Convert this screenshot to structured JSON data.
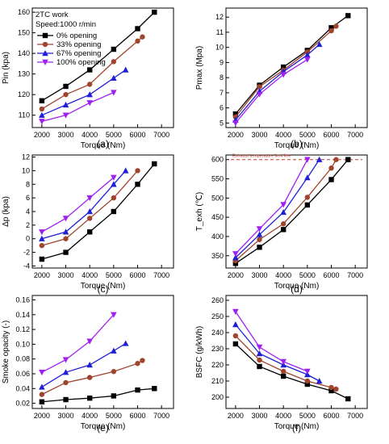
{
  "figure": {
    "legend": {
      "note_line1": "2TC work",
      "note_line2": "Speed:1000 r/min"
    }
  },
  "chart_data": [
    {
      "id": "a",
      "type": "line",
      "caption": "(a)",
      "title": "",
      "xlabel": "Torque (Nm)",
      "ylabel": "Pin (kpa)",
      "xlim": [
        1600,
        7500
      ],
      "xticks": [
        2000,
        3000,
        4000,
        5000,
        6000,
        7000
      ],
      "ylim": [
        104,
        162
      ],
      "yticks": [
        110,
        120,
        130,
        140,
        150,
        160
      ],
      "grid": false,
      "legend": "top-left",
      "series": [
        {
          "name": "0% opening",
          "color": "#000000",
          "marker": "square",
          "x": [
            2000,
            3000,
            4000,
            5000,
            6000,
            6700
          ],
          "y": [
            117,
            124,
            132,
            142,
            152,
            160
          ]
        },
        {
          "name": "33% opening",
          "color": "#a0442c",
          "marker": "circle",
          "x": [
            2000,
            3000,
            4000,
            5000,
            6000,
            6200
          ],
          "y": [
            113,
            120,
            125,
            136,
            146,
            148
          ]
        },
        {
          "name": "67% opening",
          "color": "#1f1fd6",
          "marker": "triangle",
          "x": [
            2000,
            3000,
            4000,
            5000,
            5500
          ],
          "y": [
            110,
            115,
            120,
            128,
            132
          ]
        },
        {
          "name": "100% opening",
          "color": "#a020f0",
          "marker": "tri-down",
          "x": [
            2000,
            3000,
            4000,
            5000
          ],
          "y": [
            107,
            110,
            116,
            121
          ]
        }
      ]
    },
    {
      "id": "b",
      "type": "line",
      "caption": "(b)",
      "title": "",
      "xlabel": "Torque (Nm)",
      "ylabel": "Pmax (Mpa)",
      "xlim": [
        1600,
        7500
      ],
      "xticks": [
        2000,
        3000,
        4000,
        5000,
        6000,
        7000
      ],
      "ylim": [
        4.7,
        12.6
      ],
      "yticks": [
        5,
        6,
        7,
        8,
        9,
        10,
        11,
        12
      ],
      "grid": false,
      "legend": "none",
      "series": [
        {
          "name": "0% opening",
          "color": "#000000",
          "marker": "square",
          "x": [
            2000,
            3000,
            4000,
            5000,
            6000,
            6700
          ],
          "y": [
            5.6,
            7.5,
            8.7,
            9.8,
            11.3,
            12.1
          ]
        },
        {
          "name": "33% opening",
          "color": "#a0442c",
          "marker": "circle",
          "x": [
            2000,
            3000,
            4000,
            5000,
            6000,
            6200
          ],
          "y": [
            5.4,
            7.4,
            8.5,
            9.7,
            11.1,
            11.4
          ]
        },
        {
          "name": "67% opening",
          "color": "#1f1fd6",
          "marker": "triangle",
          "x": [
            2000,
            3000,
            4000,
            5000,
            5500
          ],
          "y": [
            5.2,
            7.1,
            8.4,
            9.5,
            10.2
          ]
        },
        {
          "name": "100% opening",
          "color": "#a020f0",
          "marker": "tri-down",
          "x": [
            2000,
            3000,
            4000,
            5000
          ],
          "y": [
            5.0,
            6.9,
            8.2,
            9.2
          ]
        }
      ]
    },
    {
      "id": "c",
      "type": "line",
      "caption": "(c)",
      "title": "",
      "xlabel": "Torque (Nm)",
      "ylabel": "Δp (kpa)",
      "xlim": [
        1600,
        7500
      ],
      "xticks": [
        2000,
        3000,
        4000,
        5000,
        6000,
        7000
      ],
      "ylim": [
        -4.3,
        12.3
      ],
      "yticks": [
        -4,
        -2,
        0,
        2,
        4,
        6,
        8,
        10,
        12
      ],
      "grid": false,
      "legend": "none",
      "series": [
        {
          "name": "0% opening",
          "color": "#000000",
          "marker": "square",
          "x": [
            2000,
            3000,
            4000,
            5000,
            6000,
            6700
          ],
          "y": [
            -3,
            -2,
            1,
            4,
            8,
            11
          ]
        },
        {
          "name": "33% opening",
          "color": "#a0442c",
          "marker": "circle",
          "x": [
            2000,
            3000,
            4000,
            5000,
            6000
          ],
          "y": [
            -1,
            0,
            3,
            6,
            10
          ]
        },
        {
          "name": "67% opening",
          "color": "#1f1fd6",
          "marker": "triangle",
          "x": [
            2000,
            3000,
            4000,
            5000,
            5500
          ],
          "y": [
            0,
            1,
            4,
            8,
            10
          ]
        },
        {
          "name": "100% opening",
          "color": "#a020f0",
          "marker": "tri-down",
          "x": [
            2000,
            3000,
            4000,
            5000
          ],
          "y": [
            1,
            3,
            6,
            9
          ]
        }
      ]
    },
    {
      "id": "d",
      "type": "line",
      "caption": "(d)",
      "title": "",
      "xlabel": "Torque (Nm)",
      "ylabel": "T_exh (℃)",
      "xlim": [
        1600,
        7500
      ],
      "xticks": [
        2000,
        3000,
        4000,
        5000,
        6000,
        7000
      ],
      "ylim": [
        318,
        612
      ],
      "yticks": [
        350,
        400,
        450,
        500,
        550,
        600
      ],
      "grid": false,
      "legend": "none",
      "annotation": {
        "text": "Exhaust temperature limit line",
        "y": 600,
        "color": "#c0392b",
        "style": "dashed"
      },
      "series": [
        {
          "name": "0% opening",
          "color": "#000000",
          "marker": "square",
          "x": [
            2000,
            3000,
            4000,
            5000,
            6000,
            6700
          ],
          "y": [
            330,
            372,
            418,
            482,
            548,
            600
          ]
        },
        {
          "name": "33% opening",
          "color": "#a0442c",
          "marker": "circle",
          "x": [
            2000,
            3000,
            4000,
            5000,
            6000,
            6200
          ],
          "y": [
            337,
            392,
            433,
            502,
            578,
            600
          ]
        },
        {
          "name": "67% opening",
          "color": "#1f1fd6",
          "marker": "triangle",
          "x": [
            2000,
            3000,
            4000,
            5000,
            5500
          ],
          "y": [
            345,
            405,
            463,
            553,
            600
          ]
        },
        {
          "name": "100% opening",
          "color": "#a020f0",
          "marker": "tri-down",
          "x": [
            2000,
            3000,
            4000,
            5000
          ],
          "y": [
            355,
            420,
            483,
            600
          ]
        }
      ]
    },
    {
      "id": "e",
      "type": "line",
      "caption": "(e)",
      "title": "",
      "xlabel": "Torque (Nm)",
      "ylabel": "Smoke opacity (-)",
      "xlim": [
        1600,
        7500
      ],
      "xticks": [
        2000,
        3000,
        4000,
        5000,
        6000,
        7000
      ],
      "ylim": [
        0.013,
        0.166
      ],
      "yticks": [
        0.02,
        0.04,
        0.06,
        0.08,
        0.1,
        0.12,
        0.14,
        0.16
      ],
      "ytick_labels": [
        "0.02",
        "0.04",
        "0.06",
        "0.08",
        "0.10",
        "0.12",
        "0.14",
        "0.16"
      ],
      "grid": false,
      "legend": "none",
      "series": [
        {
          "name": "0% opening",
          "color": "#000000",
          "marker": "square",
          "x": [
            2000,
            3000,
            4000,
            5000,
            6000,
            6700
          ],
          "y": [
            0.022,
            0.025,
            0.027,
            0.03,
            0.038,
            0.04
          ]
        },
        {
          "name": "33% opening",
          "color": "#a0442c",
          "marker": "circle",
          "x": [
            2000,
            3000,
            4000,
            5000,
            6000,
            6200
          ],
          "y": [
            0.032,
            0.048,
            0.055,
            0.063,
            0.074,
            0.078
          ]
        },
        {
          "name": "67% opening",
          "color": "#1f1fd6",
          "marker": "triangle",
          "x": [
            2000,
            3000,
            4000,
            5000,
            5500
          ],
          "y": [
            0.042,
            0.062,
            0.072,
            0.091,
            0.101
          ]
        },
        {
          "name": "100% opening",
          "color": "#a020f0",
          "marker": "tri-down",
          "x": [
            2000,
            3000,
            4000,
            5000
          ],
          "y": [
            0.062,
            0.079,
            0.104,
            0.14
          ]
        }
      ]
    },
    {
      "id": "f",
      "type": "line",
      "caption": "(f)",
      "title": "",
      "xlabel": "Torque (Nm)",
      "ylabel": "BSFC (g/kWh)",
      "xlim": [
        1600,
        7500
      ],
      "xticks": [
        2000,
        3000,
        4000,
        5000,
        6000,
        7000
      ],
      "ylim": [
        193,
        263
      ],
      "yticks": [
        200,
        210,
        220,
        230,
        240,
        250,
        260
      ],
      "grid": false,
      "legend": "none",
      "series": [
        {
          "name": "0% opening",
          "color": "#000000",
          "marker": "square",
          "x": [
            2000,
            3000,
            4000,
            5000,
            6000,
            6700
          ],
          "y": [
            233,
            219,
            213,
            208,
            204,
            199
          ]
        },
        {
          "name": "33% opening",
          "color": "#a0442c",
          "marker": "circle",
          "x": [
            2000,
            3000,
            4000,
            5000,
            6000,
            6200
          ],
          "y": [
            238,
            223,
            216,
            210,
            206,
            205
          ]
        },
        {
          "name": "67% opening",
          "color": "#1f1fd6",
          "marker": "triangle",
          "x": [
            2000,
            3000,
            4000,
            5000,
            5500
          ],
          "y": [
            245,
            227,
            220,
            214,
            210
          ]
        },
        {
          "name": "100% opening",
          "color": "#a020f0",
          "marker": "tri-down",
          "x": [
            2000,
            3000,
            4000,
            5000
          ],
          "y": [
            253,
            231,
            222,
            216
          ]
        }
      ]
    }
  ]
}
